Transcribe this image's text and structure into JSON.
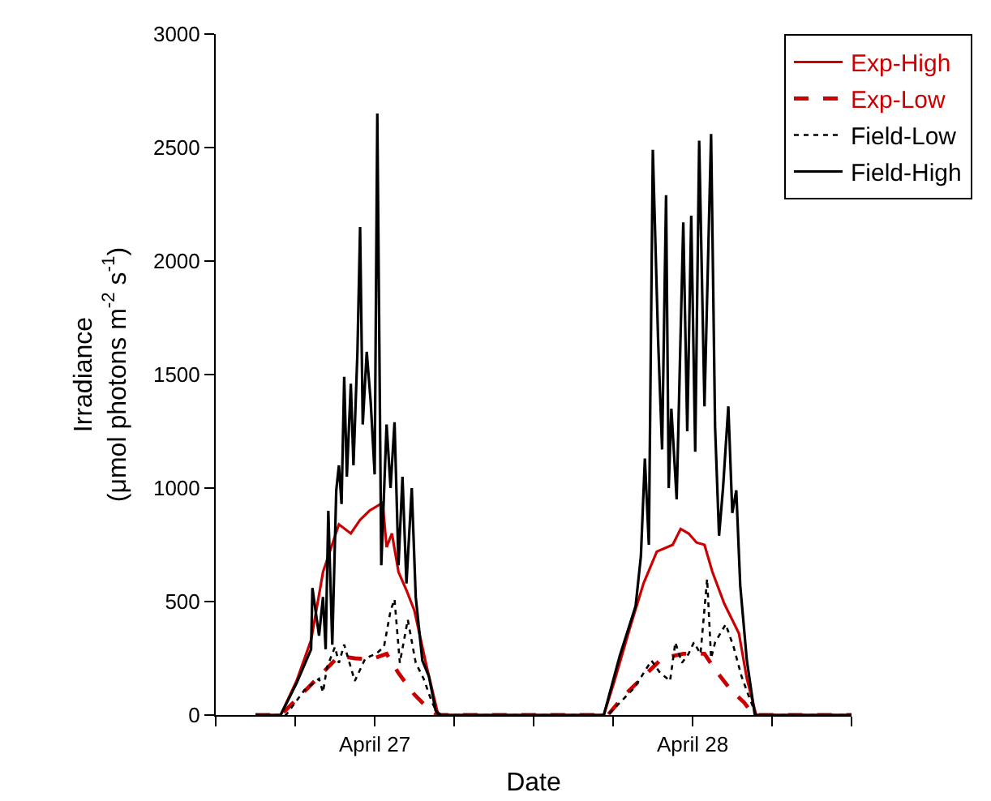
{
  "chart_data": {
    "type": "line",
    "xlabel": "Date",
    "ylabel": "Irradiance\n(μmol photons m$^{-2}$ s$^{-1}$)",
    "xlim": [
      "--04-26T12:00",
      "--04-28T12:00"
    ],
    "xticks": [
      {
        "value": "--04-26T12:00",
        "label": null
      },
      {
        "value": "--04-26T18:00",
        "label": null
      },
      {
        "value": "--04-27T00:00",
        "label": "April 27"
      },
      {
        "value": "--04-27T06:00",
        "label": null
      },
      {
        "value": "--04-27T12:00",
        "label": null
      },
      {
        "value": "--04-27T18:00",
        "label": null
      },
      {
        "value": "--04-28T00:00",
        "label": "April 28"
      },
      {
        "value": "--04-28T06:00",
        "label": null
      },
      {
        "value": "--04-28T12:00",
        "label": null
      }
    ],
    "ylim": [
      0,
      3000
    ],
    "yticks": [
      0,
      500,
      1000,
      1500,
      2000,
      2500,
      3000
    ],
    "grid": false,
    "legend": "top right",
    "marker": "none",
    "series": [
      {
        "name": "Exp-High",
        "color": "#cc0000",
        "line_style": "solid",
        "x": [
          "--04-26T15:00",
          "--04-26T16:54",
          "--04-26T18:06",
          "--04-26T19:12",
          "--04-26T20:06",
          "--04-26T21:18",
          "--04-26T22:12",
          "--04-26T22:54",
          "--04-26T23:36",
          "--04-27T00:36",
          "--04-27T00:54",
          "--04-27T01:18",
          "--04-27T01:48",
          "--04-27T02:24",
          "--04-27T03:00",
          "--04-27T03:54",
          "--04-27T04:48",
          "--04-27T12:00",
          "--04-27T17:18",
          "--04-27T18:06",
          "--04-27T19:18",
          "--04-27T20:18",
          "--04-27T21:18",
          "--04-27T22:30",
          "--04-27T23:06",
          "--04-27T23:42",
          "--04-28T00:18",
          "--04-28T00:54",
          "--04-28T01:30",
          "--04-28T02:24",
          "--04-28T03:30",
          "--04-28T04:06",
          "--04-28T04:48",
          "--04-28T12:00"
        ],
        "values": [
          0,
          0,
          150,
          330,
          630,
          840,
          800,
          860,
          900,
          935,
          740,
          800,
          630,
          550,
          460,
          220,
          0,
          0,
          0,
          150,
          390,
          580,
          720,
          750,
          820,
          800,
          760,
          750,
          630,
          490,
          360,
          160,
          0,
          0
        ]
      },
      {
        "name": "Exp-Low",
        "color": "#cc0000",
        "line_style": "dashed",
        "x": [
          "--04-26T15:00",
          "--04-26T16:54",
          "--04-26T18:18",
          "--04-26T19:48",
          "--04-26T21:18",
          "--04-26T22:30",
          "--04-26T23:42",
          "--04-27T00:54",
          "--04-27T01:48",
          "--04-27T03:00",
          "--04-27T04:12",
          "--04-27T04:48",
          "--04-27T12:00",
          "--04-27T17:36",
          "--04-27T18:54",
          "--04-27T20:18",
          "--04-27T21:42",
          "--04-27T23:18",
          "--04-28T00:54",
          "--04-28T01:42",
          "--04-28T02:54",
          "--04-28T03:54",
          "--04-28T04:36",
          "--04-28T12:00"
        ],
        "values": [
          0,
          0,
          80,
          170,
          260,
          250,
          245,
          270,
          185,
          90,
          20,
          0,
          0,
          0,
          90,
          170,
          250,
          270,
          270,
          200,
          110,
          55,
          0,
          0
        ]
      },
      {
        "name": "Field-Low",
        "color": "#000000",
        "line_style": "dotted",
        "x": [
          "--04-26T15:00",
          "--04-26T17:18",
          "--04-26T18:42",
          "--04-26T19:48",
          "--04-26T20:06",
          "--04-26T20:24",
          "--04-26T21:00",
          "--04-26T21:18",
          "--04-26T21:42",
          "--04-26T22:30",
          "--04-26T23:18",
          "--04-27T00:06",
          "--04-27T00:42",
          "--04-27T01:12",
          "--04-27T01:30",
          "--04-27T01:54",
          "--04-27T02:30",
          "--04-27T03:06",
          "--04-27T03:42",
          "--04-27T04:18",
          "--04-27T04:48",
          "--04-27T12:00",
          "--04-27T17:36",
          "--04-27T19:36",
          "--04-27T20:54",
          "--04-27T21:30",
          "--04-27T22:18",
          "--04-27T22:42",
          "--04-27T23:12",
          "--04-27T23:42",
          "--04-28T00:06",
          "--04-28T00:36",
          "--04-28T01:06",
          "--04-28T01:24",
          "--04-28T01:42",
          "--04-28T02:30",
          "--04-28T03:06",
          "--04-28T03:42",
          "--04-28T04:12",
          "--04-28T04:48",
          "--04-28T12:00"
        ],
        "values": [
          0,
          0,
          110,
          160,
          100,
          210,
          300,
          230,
          310,
          150,
          250,
          270,
          300,
          460,
          510,
          230,
          420,
          230,
          160,
          60,
          0,
          0,
          0,
          120,
          240,
          190,
          150,
          320,
          230,
          270,
          320,
          270,
          600,
          250,
          320,
          400,
          300,
          170,
          90,
          0,
          0
        ]
      },
      {
        "name": "Field-High",
        "color": "#000000",
        "line_style": "solid",
        "x": [
          "--04-26T15:00",
          "--04-26T16:54",
          "--04-26T18:06",
          "--04-26T19:12",
          "--04-26T19:18",
          "--04-26T19:48",
          "--04-26T20:06",
          "--04-26T20:18",
          "--04-26T20:30",
          "--04-26T20:48",
          "--04-26T21:06",
          "--04-26T21:18",
          "--04-26T21:30",
          "--04-26T21:42",
          "--04-26T21:54",
          "--04-26T22:12",
          "--04-26T22:24",
          "--04-26T22:42",
          "--04-26T22:54",
          "--04-26T23:06",
          "--04-26T23:24",
          "--04-26T23:42",
          "--04-27T00:00",
          "--04-27T00:12",
          "--04-27T00:30",
          "--04-27T00:54",
          "--04-27T01:12",
          "--04-27T01:30",
          "--04-27T01:48",
          "--04-27T02:06",
          "--04-27T02:24",
          "--04-27T02:48",
          "--04-27T03:06",
          "--04-27T03:36",
          "--04-27T04:06",
          "--04-27T04:36",
          "--04-27T05:00",
          "--04-27T12:00",
          "--04-27T17:18",
          "--04-27T18:30",
          "--04-27T19:42",
          "--04-27T20:06",
          "--04-27T20:24",
          "--04-27T20:42",
          "--04-27T21:00",
          "--04-27T21:24",
          "--04-27T21:42",
          "--04-27T22:00",
          "--04-27T22:12",
          "--04-27T22:24",
          "--04-27T22:48",
          "--04-27T23:18",
          "--04-27T23:36",
          "--04-27T23:54",
          "--04-28T00:12",
          "--04-28T00:30",
          "--04-28T00:54",
          "--04-28T01:24",
          "--04-28T01:42",
          "--04-28T02:00",
          "--04-28T02:18",
          "--04-28T02:42",
          "--04-28T03:00",
          "--04-28T03:18",
          "--04-28T03:36",
          "--04-28T04:06",
          "--04-28T04:42",
          "--04-28T12:00"
        ],
        "values": [
          0,
          0,
          140,
          290,
          560,
          350,
          520,
          290,
          900,
          310,
          990,
          1100,
          930,
          1490,
          1050,
          1460,
          1100,
          1600,
          2150,
          1280,
          1600,
          1380,
          1060,
          2650,
          660,
          1280,
          1000,
          1290,
          660,
          1050,
          580,
          1000,
          520,
          240,
          170,
          20,
          0,
          0,
          0,
          260,
          480,
          700,
          1130,
          750,
          2490,
          1650,
          1170,
          2290,
          1000,
          1350,
          950,
          2170,
          1250,
          2200,
          1160,
          2530,
          1360,
          2560,
          1270,
          790,
          1000,
          1360,
          890,
          990,
          570,
          240,
          0,
          0
        ]
      }
    ]
  }
}
